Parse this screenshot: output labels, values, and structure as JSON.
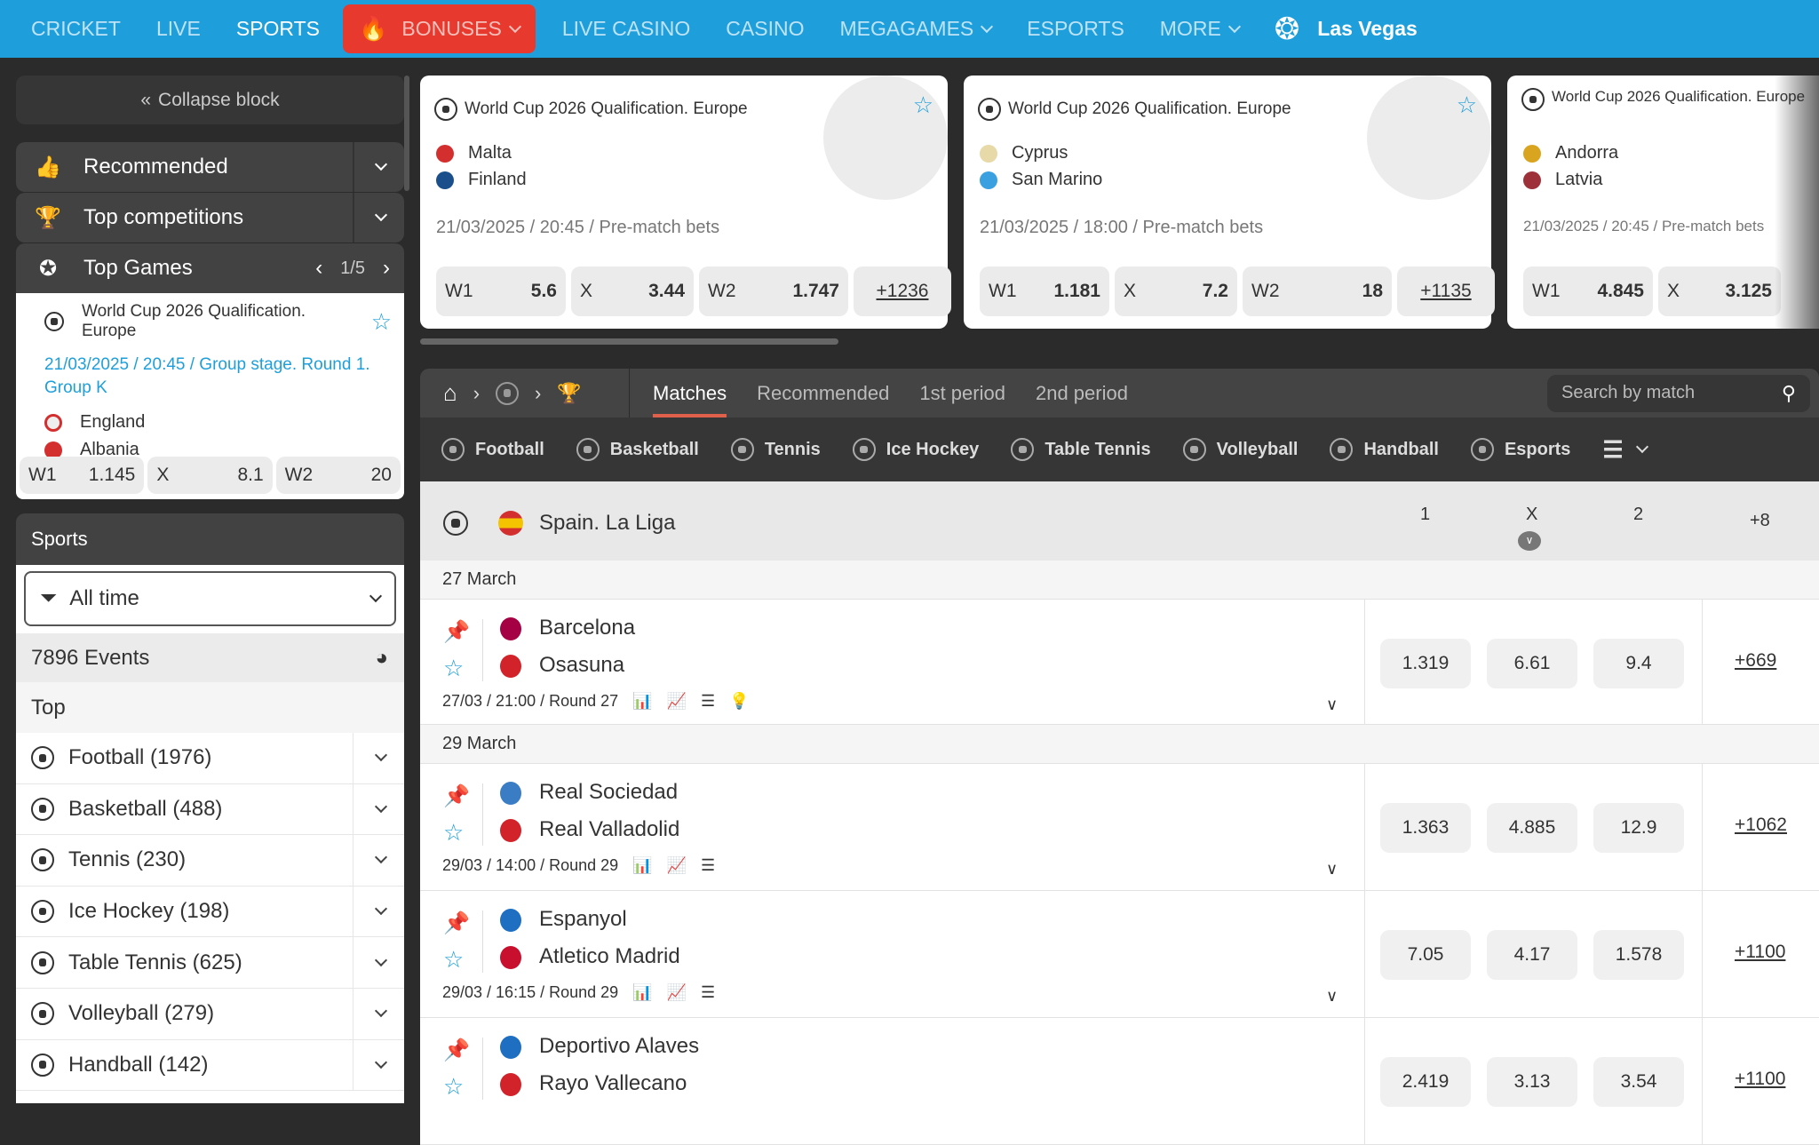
{
  "topnav": {
    "items": [
      {
        "label": "CRICKET",
        "active": false
      },
      {
        "label": "LIVE",
        "active": false
      },
      {
        "label": "SPORTS",
        "active": true
      },
      {
        "label": "BONUSES",
        "dropdown": true,
        "highlight": "#e8392f",
        "icon": "fire-icon"
      },
      {
        "label": "LIVE CASINO"
      },
      {
        "label": "CASINO"
      },
      {
        "label": "MEGAGAMES",
        "dropdown": true
      },
      {
        "label": "ESPORTS"
      },
      {
        "label": "MORE",
        "dropdown": true
      }
    ],
    "las_vegas": "Las Vegas",
    "bar_color": "#1e9fdb"
  },
  "sidebar": {
    "collapse": "Collapse block",
    "recommended": "Recommended",
    "top_competitions": "Top competitions",
    "top_games": {
      "title": "Top Games",
      "pager": "1/5",
      "league": "World Cup 2026 Qualification. Europe",
      "info": "21/03/2025 / 20:45 / Group stage. Round 1. Group K",
      "team1": "England",
      "team2": "Albania",
      "odds": [
        {
          "label": "W1",
          "value": "1.145"
        },
        {
          "label": "X",
          "value": "8.1"
        },
        {
          "label": "W2",
          "value": "20"
        }
      ]
    },
    "sports_title": "Sports",
    "filter": "All time",
    "events": "7896 Events",
    "top_label": "Top",
    "sports": [
      {
        "label": "Football (1976)",
        "icon": "football-icon"
      },
      {
        "label": "Basketball (488)",
        "icon": "basketball-icon"
      },
      {
        "label": "Tennis (230)",
        "icon": "tennis-icon"
      },
      {
        "label": "Ice Hockey (198)",
        "icon": "ice-hockey-icon"
      },
      {
        "label": "Table Tennis (625)",
        "icon": "table-tennis-icon"
      },
      {
        "label": "Volleyball (279)",
        "icon": "volleyball-icon"
      },
      {
        "label": "Handball (142)",
        "icon": "handball-icon"
      }
    ]
  },
  "cards": [
    {
      "league": "World Cup 2026 Qualification. Europe",
      "team1": "Malta",
      "team2": "Finland",
      "f1": "#d32f2f",
      "f2": "#1a4f8b",
      "info": "21/03/2025 / 20:45 / Pre-match bets",
      "odds": [
        {
          "label": "W1",
          "value": "5.6"
        },
        {
          "label": "X",
          "value": "3.44"
        },
        {
          "label": "W2",
          "value": "1.747"
        }
      ],
      "more": "+1236"
    },
    {
      "league": "World Cup 2026 Qualification. Europe",
      "team1": "Cyprus",
      "team2": "San Marino",
      "f1": "#e8d9a8",
      "f2": "#3aa0e0",
      "info": "21/03/2025 / 18:00 / Pre-match bets",
      "odds": [
        {
          "label": "W1",
          "value": "1.181"
        },
        {
          "label": "X",
          "value": "7.2"
        },
        {
          "label": "W2",
          "value": "18"
        }
      ],
      "more": "+1135"
    },
    {
      "league": "World Cup 2026 Qualification. Europe",
      "team1": "Andorra",
      "team2": "Latvia",
      "f1": "#d9a521",
      "f2": "#9e3039",
      "info": "21/03/2025 / 20:45 / Pre-match bets",
      "odds": [
        {
          "label": "W1",
          "value": "4.845"
        },
        {
          "label": "X",
          "value": "3.125"
        }
      ],
      "more": ""
    }
  ],
  "main": {
    "tabs": [
      "Matches",
      "Recommended",
      "1st period",
      "2nd period"
    ],
    "active_tab": "Matches",
    "search_placeholder": "Search by match",
    "sports_tabs": [
      "Football",
      "Basketball",
      "Tennis",
      "Ice Hockey",
      "Table Tennis",
      "Volleyball",
      "Handball",
      "Esports"
    ],
    "league": {
      "name": "Spain. La Liga",
      "col1": "1",
      "colx": "X",
      "col2": "2",
      "more": "+8"
    },
    "groups": [
      {
        "date": "27 March",
        "matches": [
          {
            "team1": "Barcelona",
            "team2": "Osasuna",
            "c1": "#a50044",
            "c2": "#d2232a",
            "info": "27/03 / 21:00 / Round 27",
            "odds": [
              "1.319",
              "6.61",
              "9.4"
            ],
            "more": "+669",
            "tip": true
          }
        ]
      },
      {
        "date": "29 March",
        "matches": [
          {
            "team1": "Real Sociedad",
            "team2": "Real Valladolid",
            "c1": "#3b7dc4",
            "c2": "#d2232a",
            "info": "29/03 / 14:00 / Round 29",
            "odds": [
              "1.363",
              "4.885",
              "12.9"
            ],
            "more": "+1062"
          },
          {
            "team1": "Espanyol",
            "team2": "Atletico Madrid",
            "c1": "#1e6fc1",
            "c2": "#c8102e",
            "info": "29/03 / 16:15 / Round 29",
            "odds": [
              "7.05",
              "4.17",
              "1.578"
            ],
            "more": "+1100"
          },
          {
            "team1": "Deportivo Alaves",
            "team2": "Rayo Vallecano",
            "c1": "#1e6fc1",
            "c2": "#d2232a",
            "info": "",
            "odds": [
              "2.419",
              "3.13",
              "3.54"
            ],
            "more": "+1100"
          }
        ]
      }
    ]
  }
}
